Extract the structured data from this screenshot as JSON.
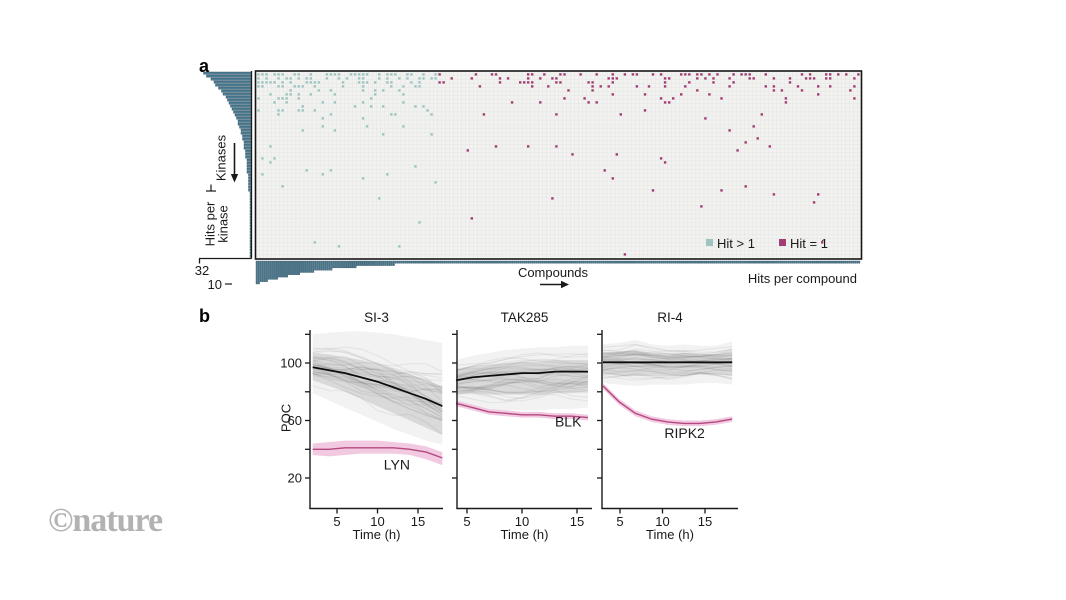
{
  "watermark": "©nature",
  "panel_labels": {
    "a": "a",
    "b": "b"
  },
  "panel_a": {
    "kinases_axis_label": "Kinases",
    "hits_per_kinase_label": [
      "Hits per",
      "kinase"
    ],
    "kinase_max_tick": "32",
    "compound_max_tick": "10",
    "compounds_axis_label": "Compounds",
    "hits_per_compound_label": "Hits per compound",
    "legend": [
      {
        "label": "Hit > 1",
        "color": "#9ec4c1"
      },
      {
        "label": "Hit = 1",
        "color": "#a23c74"
      }
    ],
    "colors": {
      "bar_fill": "#4e7e93",
      "bar_stroke": "#27485a",
      "matrix_bg": "#f2f2f0",
      "matrix_grid": "#e4e6e2",
      "matrix_border": "#161616",
      "teal_dot": "#9ec4c1",
      "magenta_dot": "#a23c74",
      "axis": "#1a1a1a"
    }
  },
  "panel_b": {
    "ylabel": "POC",
    "colors": {
      "mean_line": "#0d0d0d",
      "strand": "#333333",
      "band": "#000000",
      "highlight_line": "#b5487f",
      "highlight_band": "#eec0da",
      "highlight_label": "#b5538b",
      "axis": "#1a1a1a"
    }
  },
  "chart_data": [
    {
      "id": "hit-matrix",
      "type": "scatter",
      "x_axis": "Compounds",
      "y_axis": "Kinases",
      "legend": [
        "Hit > 1",
        "Hit = 1"
      ],
      "grid": {
        "cols": 150,
        "rows": 46
      },
      "regions": [
        {
          "name": "multi-hit",
          "color_key": "teal_dot",
          "col_start": 0,
          "col_end": 44,
          "density": {
            "base": 0.55,
            "row_decay": 7,
            "floor": 0.04,
            "floor_row_decay": 20,
            "col_decay": 55,
            "top_boost_rows": 3,
            "top_boost": 1.3
          }
        },
        {
          "name": "single-hit",
          "color_key": "magenta_dot",
          "col_start": 45,
          "col_end": 149,
          "density": {
            "base": 0.3,
            "row_decay": 2.2,
            "floor": 0.028,
            "floor_row_decay": 12,
            "min": 0.005
          }
        }
      ],
      "seed": 20240613
    },
    {
      "id": "hits-per-kinase",
      "type": "bar",
      "orientation": "horizontal-left",
      "bars": 62,
      "max": 32,
      "decay": 13,
      "axis_max_label": "32",
      "axis_title": "Hits per kinase"
    },
    {
      "id": "hits-per-compound",
      "type": "bar",
      "orientation": "column-down",
      "bars": 300,
      "max": 10,
      "decay": 36,
      "axis_max_label": "10",
      "axis_title": "Hits per compound"
    },
    {
      "id": "si3",
      "type": "line",
      "title": "SI-3",
      "xlabel": "Time (h)",
      "ylabel": "POC",
      "x": [
        2,
        4,
        6,
        8,
        10,
        12,
        14,
        16,
        18
      ],
      "xticks": [
        5,
        10,
        15
      ],
      "yticks": [
        120,
        100,
        80,
        60,
        40,
        20
      ],
      "ytick_labeled": [
        100,
        60,
        20
      ],
      "mean": [
        97,
        95,
        93,
        90,
        87,
        83,
        79,
        75,
        70
      ],
      "band_outer_upper": [
        120,
        121,
        122,
        122,
        121,
        120,
        118,
        116,
        114
      ],
      "band_outer_lower": [
        79,
        74,
        69,
        64,
        59,
        54,
        50,
        46,
        43
      ],
      "band_inner_upper": [
        107,
        106,
        104,
        102,
        99,
        96,
        92,
        88,
        84
      ],
      "band_inner_lower": [
        88,
        84,
        80,
        75,
        70,
        65,
        60,
        55,
        50
      ],
      "highlight": {
        "name": "LYN",
        "values": [
          40,
          40,
          41,
          41,
          41,
          41,
          40,
          38,
          34
        ],
        "upper": [
          44,
          45,
          46,
          46,
          46,
          45,
          44,
          42,
          38
        ],
        "lower": [
          36,
          35,
          36,
          37,
          37,
          37,
          36,
          33,
          29
        ],
        "label_t": 12.4,
        "label_poc": 26
      },
      "strands": 36,
      "seed": 11
    },
    {
      "id": "tak285",
      "type": "line",
      "title": "TAK285",
      "xlabel": "Time (h)",
      "ylabel": "POC",
      "x": [
        4,
        5.5,
        7,
        8.5,
        10,
        11.5,
        13,
        14.5,
        16
      ],
      "xticks": [
        5,
        10,
        15
      ],
      "yticks": [
        120,
        100,
        80,
        60,
        40,
        20
      ],
      "ytick_labeled": [],
      "mean": [
        88,
        90,
        91,
        92,
        93,
        93,
        94,
        94,
        94
      ],
      "band_outer_upper": [
        102,
        105,
        107,
        109,
        110,
        111,
        111,
        112,
        112
      ],
      "band_outer_lower": [
        70,
        69,
        68,
        67,
        67,
        67,
        68,
        68,
        69
      ],
      "band_inner_upper": [
        96,
        98,
        99,
        100,
        101,
        101,
        102,
        102,
        102
      ],
      "band_inner_lower": [
        79,
        79,
        78,
        78,
        78,
        78,
        79,
        79,
        80
      ],
      "highlight": {
        "name": "BLK",
        "values": [
          72,
          69,
          66,
          65,
          64,
          64,
          63,
          63,
          62
        ],
        "upper": [
          74,
          71,
          68,
          67,
          66,
          66,
          65,
          65,
          64
        ],
        "lower": [
          70,
          67,
          64,
          63,
          62,
          62,
          61,
          61,
          60
        ],
        "label_t": 14.2,
        "label_poc": 56
      },
      "strands": 36,
      "seed": 22
    },
    {
      "id": "ri4",
      "type": "line",
      "title": "RI-4",
      "xlabel": "Time (h)",
      "ylabel": "POC",
      "x": [
        3,
        4.9,
        6.8,
        8.7,
        10.6,
        12.5,
        14.4,
        16.3,
        18.2
      ],
      "xticks": [
        5,
        10,
        15
      ],
      "yticks": [
        120,
        100,
        80,
        60,
        40,
        20
      ],
      "ytick_labeled": [],
      "mean": [
        100.5,
        100.5,
        100.5,
        100.5,
        100.5,
        100.5,
        100.5,
        100.5,
        100.5
      ],
      "band_outer_upper": [
        113,
        114,
        116,
        113,
        112,
        113,
        112,
        112,
        115
      ],
      "band_outer_lower": [
        86,
        85,
        84,
        85,
        85,
        85,
        86,
        86,
        85
      ],
      "band_inner_upper": [
        107,
        108,
        109,
        107,
        106,
        107,
        106,
        106,
        107
      ],
      "band_inner_lower": [
        92,
        91,
        91,
        91,
        91,
        91,
        92,
        92,
        91
      ],
      "highlight": {
        "name": "RIPK2",
        "values": [
          84,
          73,
          65,
          61,
          59,
          58,
          58,
          59,
          61
        ],
        "upper": [
          86,
          75,
          67,
          63,
          61,
          60,
          60,
          61,
          63
        ],
        "lower": [
          82,
          71,
          63,
          59,
          57,
          56,
          56,
          57,
          59
        ],
        "label_t": 12.6,
        "label_poc": 48
      },
      "strands": 36,
      "seed": 33
    }
  ]
}
